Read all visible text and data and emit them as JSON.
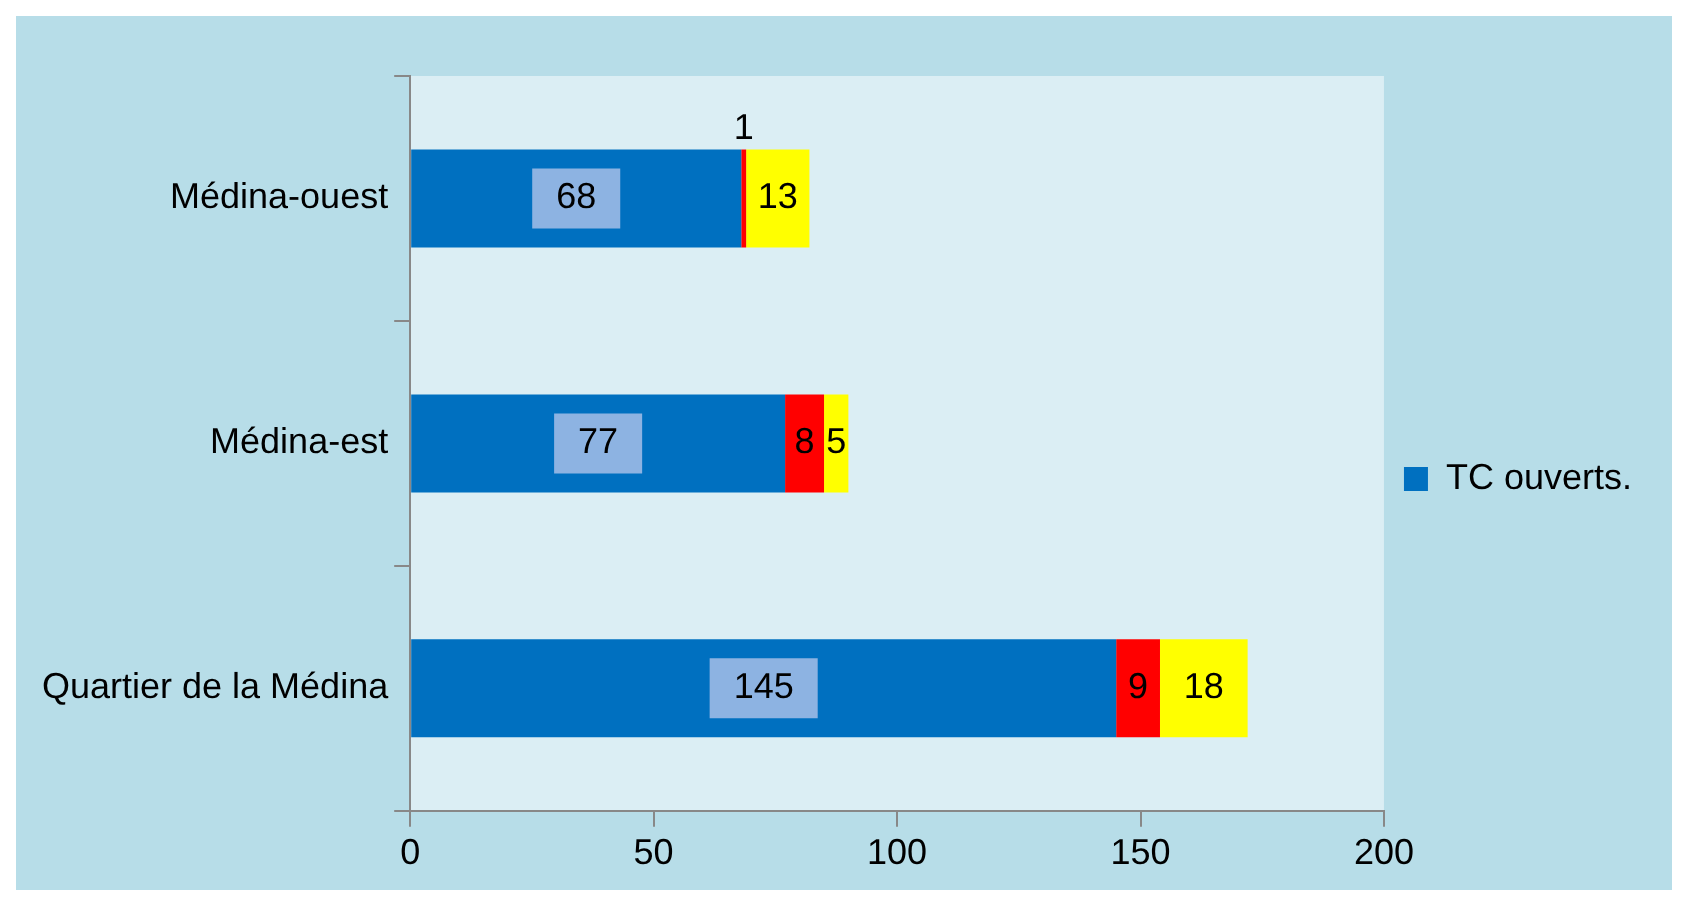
{
  "chart_data": {
    "type": "bar",
    "orientation": "horizontal",
    "stacked": true,
    "categories": [
      "Médina-ouest",
      "Médina-est",
      "Quartier de la Médina"
    ],
    "series": [
      {
        "name": "TC ouverts.",
        "color": "#0070c0",
        "values": [
          68,
          77,
          145
        ]
      },
      {
        "color": "#ff0000",
        "values": [
          1,
          8,
          9
        ]
      },
      {
        "color": "#ffff00",
        "values": [
          13,
          5,
          18
        ]
      }
    ],
    "xlim": [
      0,
      200
    ],
    "xticks": [
      0,
      50,
      100,
      150,
      200
    ],
    "data_labels": true,
    "legend": "right"
  }
}
